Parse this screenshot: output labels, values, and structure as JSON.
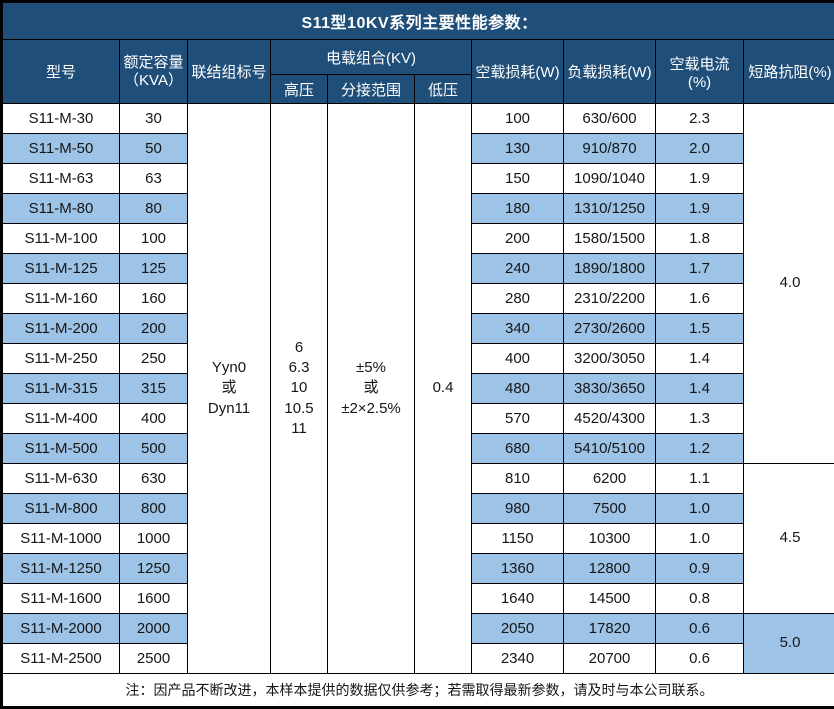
{
  "title": "S11型10KV系列主要性能参数：",
  "colors": {
    "header_bg": "#1F4E79",
    "alt_row_bg": "#9DC3E6",
    "row_bg": "#FFFFFF",
    "border": "#000000",
    "header_text": "#FFFFFF"
  },
  "header": {
    "model": "型号",
    "capacity_line1": "额定容量",
    "capacity_line2": "（KVA）",
    "connection": "联结组标号",
    "voltage_group": "电载组合(KV)",
    "hv": "高压",
    "tap_range": "分接范围",
    "lv": "低压",
    "no_load_loss": "空载损耗(W)",
    "load_loss": "负载损耗(W)",
    "no_load_current": "空载电流(%)",
    "impedance": "短路抗阻(%)"
  },
  "merged": {
    "connection_lines": [
      "Yyn0",
      "或",
      "Dyn11"
    ],
    "hv_lines": [
      "6",
      "6.3",
      "10",
      "10.5",
      "11"
    ],
    "tap_lines": [
      "±5%",
      "或",
      "±2×2.5%"
    ],
    "lv": "0.4"
  },
  "rows": [
    {
      "model": "S11-M-30",
      "capacity": "30",
      "no_load_loss": "100",
      "load_loss": "630/600",
      "no_load_current": "2.3"
    },
    {
      "model": "S11-M-50",
      "capacity": "50",
      "no_load_loss": "130",
      "load_loss": "910/870",
      "no_load_current": "2.0"
    },
    {
      "model": "S11-M-63",
      "capacity": "63",
      "no_load_loss": "150",
      "load_loss": "1090/1040",
      "no_load_current": "1.9"
    },
    {
      "model": "S11-M-80",
      "capacity": "80",
      "no_load_loss": "180",
      "load_loss": "1310/1250",
      "no_load_current": "1.9"
    },
    {
      "model": "S11-M-100",
      "capacity": "100",
      "no_load_loss": "200",
      "load_loss": "1580/1500",
      "no_load_current": "1.8"
    },
    {
      "model": "S11-M-125",
      "capacity": "125",
      "no_load_loss": "240",
      "load_loss": "1890/1800",
      "no_load_current": "1.7"
    },
    {
      "model": "S11-M-160",
      "capacity": "160",
      "no_load_loss": "280",
      "load_loss": "2310/2200",
      "no_load_current": "1.6"
    },
    {
      "model": "S11-M-200",
      "capacity": "200",
      "no_load_loss": "340",
      "load_loss": "2730/2600",
      "no_load_current": "1.5"
    },
    {
      "model": "S11-M-250",
      "capacity": "250",
      "no_load_loss": "400",
      "load_loss": "3200/3050",
      "no_load_current": "1.4"
    },
    {
      "model": "S11-M-315",
      "capacity": "315",
      "no_load_loss": "480",
      "load_loss": "3830/3650",
      "no_load_current": "1.4"
    },
    {
      "model": "S11-M-400",
      "capacity": "400",
      "no_load_loss": "570",
      "load_loss": "4520/4300",
      "no_load_current": "1.3"
    },
    {
      "model": "S11-M-500",
      "capacity": "500",
      "no_load_loss": "680",
      "load_loss": "5410/5100",
      "no_load_current": "1.2"
    },
    {
      "model": "S11-M-630",
      "capacity": "630",
      "no_load_loss": "810",
      "load_loss": "6200",
      "no_load_current": "1.1"
    },
    {
      "model": "S11-M-800",
      "capacity": "800",
      "no_load_loss": "980",
      "load_loss": "7500",
      "no_load_current": "1.0"
    },
    {
      "model": "S11-M-1000",
      "capacity": "1000",
      "no_load_loss": "1150",
      "load_loss": "10300",
      "no_load_current": "1.0"
    },
    {
      "model": "S11-M-1250",
      "capacity": "1250",
      "no_load_loss": "1360",
      "load_loss": "12800",
      "no_load_current": "0.9"
    },
    {
      "model": "S11-M-1600",
      "capacity": "1600",
      "no_load_loss": "1640",
      "load_loss": "14500",
      "no_load_current": "0.8"
    },
    {
      "model": "S11-M-2000",
      "capacity": "2000",
      "no_load_loss": "2050",
      "load_loss": "17820",
      "no_load_current": "0.6"
    },
    {
      "model": "S11-M-2500",
      "capacity": "2500",
      "no_load_loss": "2340",
      "load_loss": "20700",
      "no_load_current": "0.6"
    }
  ],
  "impedance_groups": [
    {
      "value": "4.0",
      "span": 12
    },
    {
      "value": "4.5",
      "span": 5
    },
    {
      "value": "5.0",
      "span": 2
    }
  ],
  "footer_note": "注：因产品不断改进，本样本提供的数据仅供参考；若需取得最新参数，请及时与本公司联系。"
}
